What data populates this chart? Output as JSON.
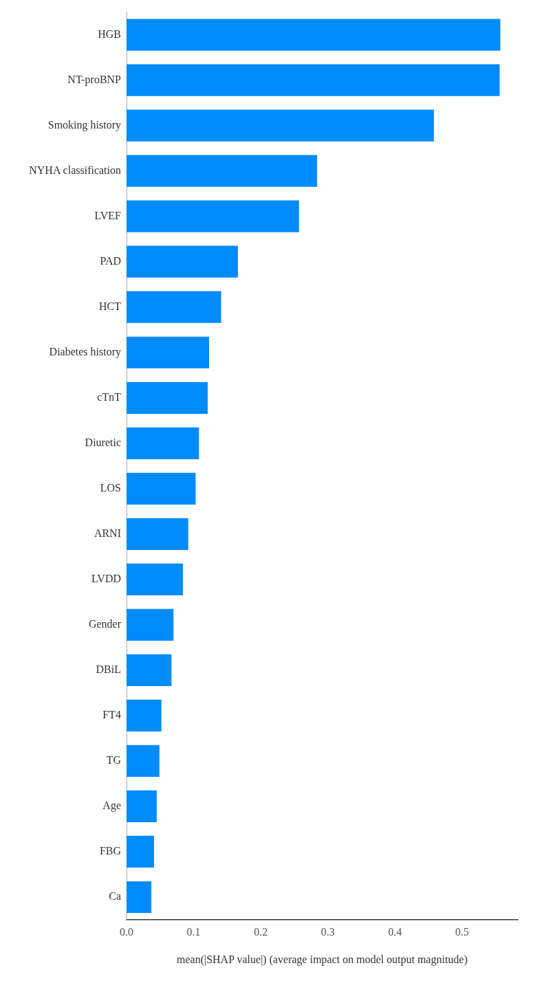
{
  "chart_data": {
    "type": "bar",
    "orientation": "horizontal",
    "categories": [
      "HGB",
      "NT-proBNP",
      "Smoking history",
      "NYHA classification",
      "LVEF",
      "PAD",
      "HCT",
      "Diabetes history",
      "cTnT",
      "Diuretic",
      "LOS",
      "ARNI",
      "LVDD",
      "Gender",
      "DBiL",
      "FT4",
      "TG",
      "Age",
      "FBG",
      "Ca"
    ],
    "values": [
      0.557,
      0.556,
      0.458,
      0.284,
      0.257,
      0.166,
      0.141,
      0.123,
      0.121,
      0.108,
      0.103,
      0.092,
      0.084,
      0.07,
      0.067,
      0.052,
      0.049,
      0.045,
      0.041,
      0.037
    ],
    "color": "#008bfb",
    "xlim": [
      0,
      0.583
    ],
    "xticks": [
      {
        "value": 0,
        "label": "0.0"
      },
      0.1,
      0.2,
      0.3,
      0.4,
      0.5
    ],
    "xlabel": "mean(|SHAP value|) (average impact on model output magnitude)"
  }
}
